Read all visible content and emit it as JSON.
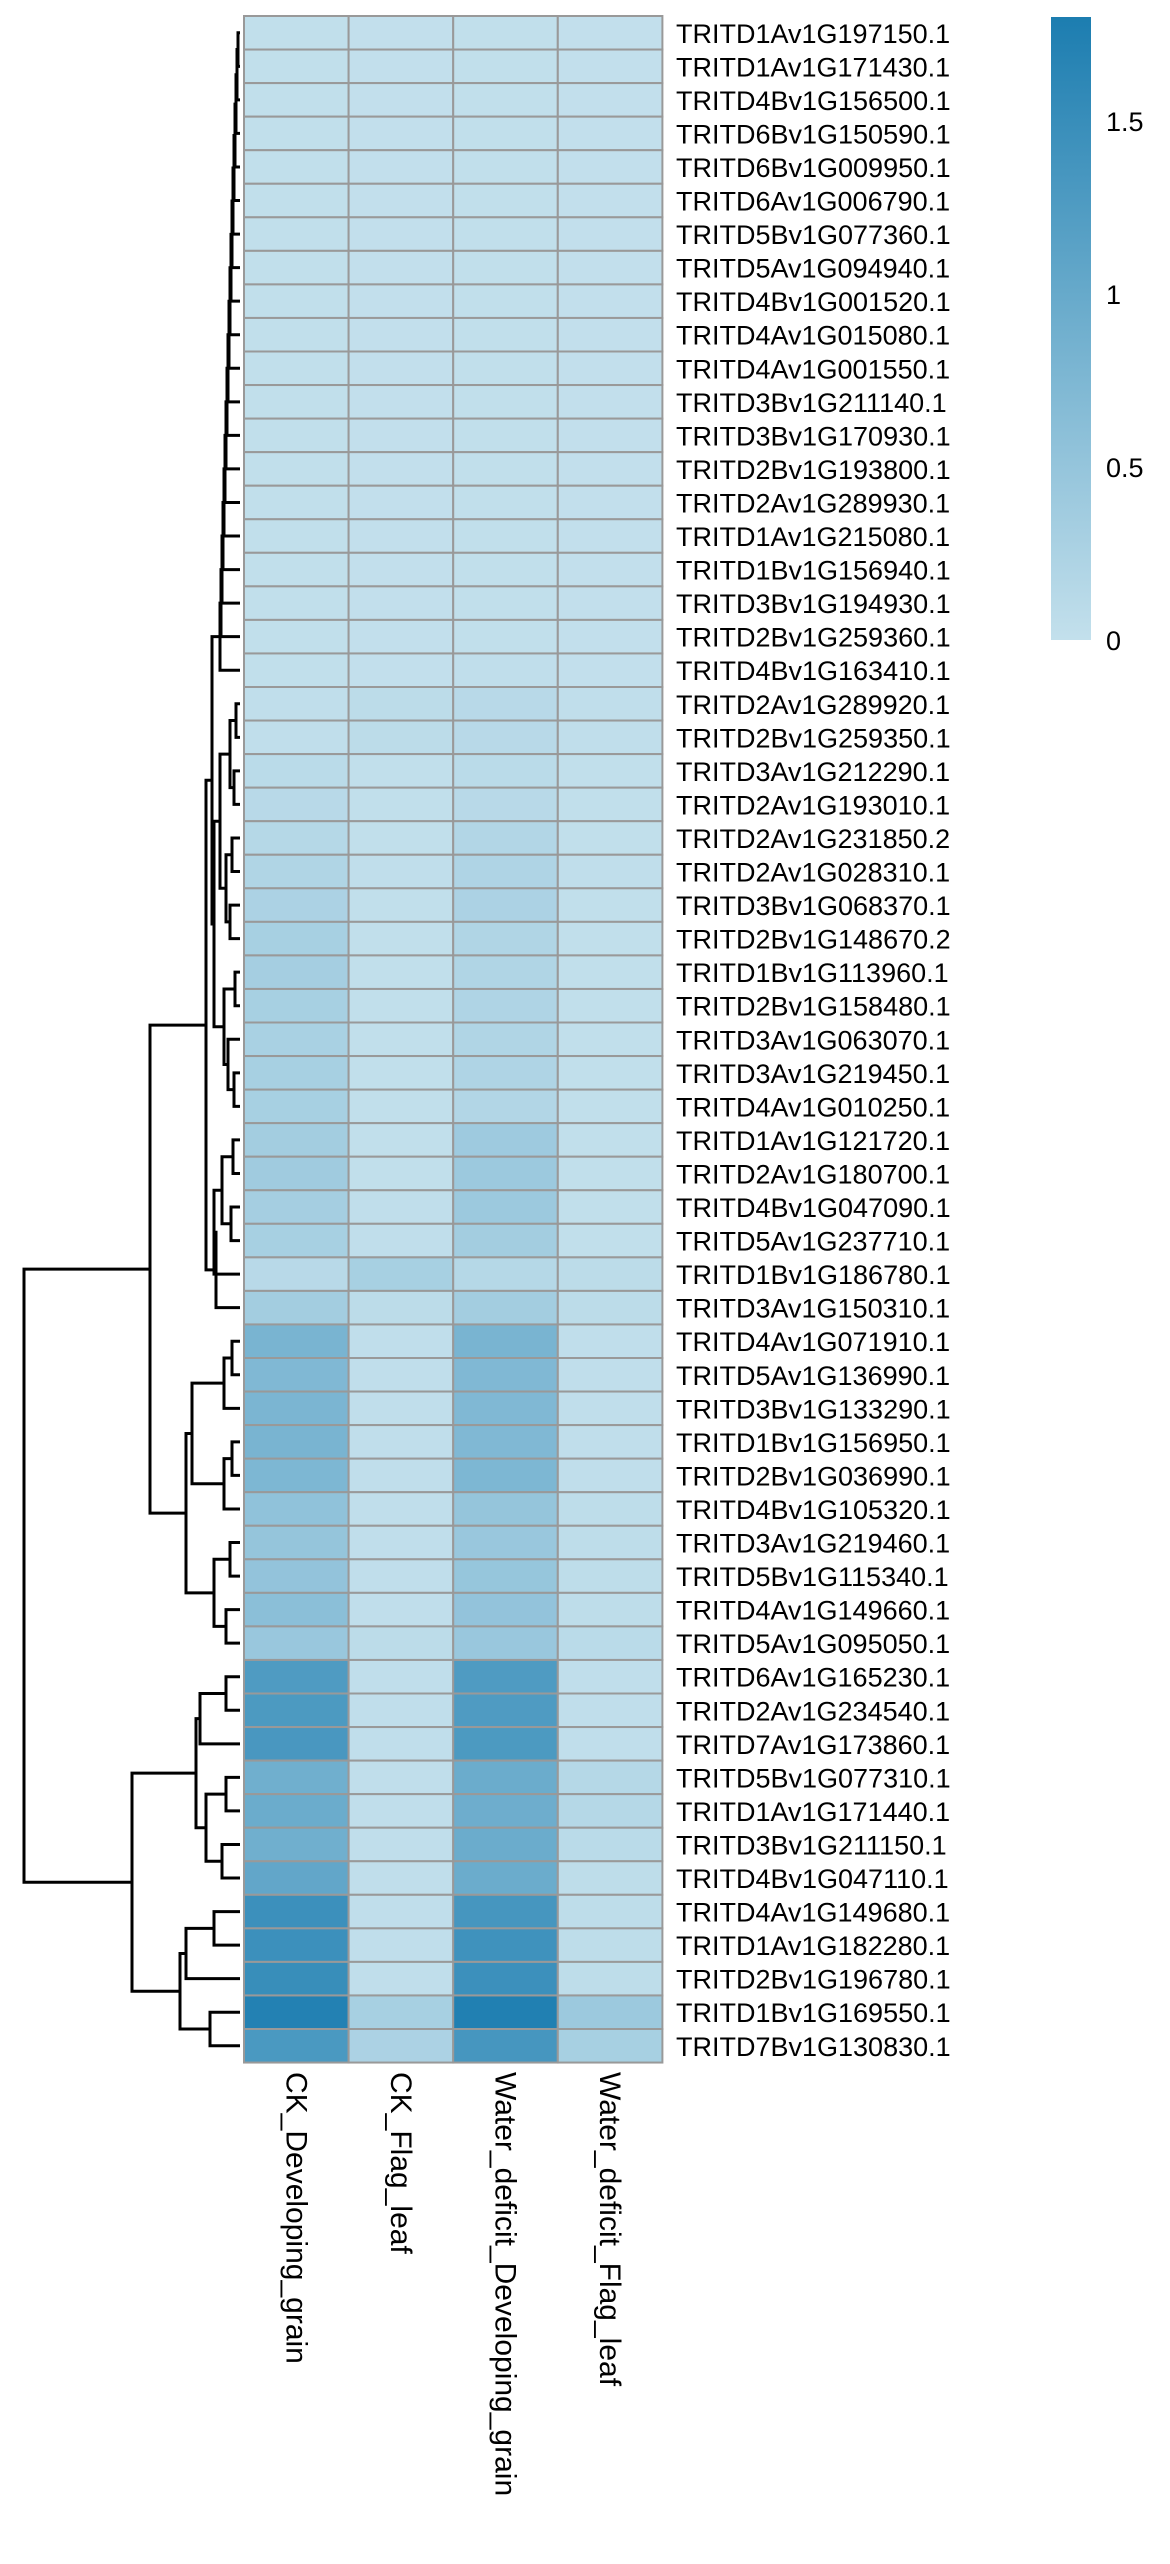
{
  "chart_data": {
    "type": "heatmap",
    "columns": [
      "CK_Developing_grain",
      "CK_Flag_leaf",
      "Water_deficit_Developing_grain",
      "Water_deficit_Flag_leaf"
    ],
    "rows": [
      "TRITD1Av1G197150.1",
      "TRITD1Av1G171430.1",
      "TRITD4Bv1G156500.1",
      "TRITD6Bv1G150590.1",
      "TRITD6Bv1G009950.1",
      "TRITD6Av1G006790.1",
      "TRITD5Bv1G077360.1",
      "TRITD5Av1G094940.1",
      "TRITD4Bv1G001520.1",
      "TRITD4Av1G015080.1",
      "TRITD4Av1G001550.1",
      "TRITD3Bv1G211140.1",
      "TRITD3Bv1G170930.1",
      "TRITD2Bv1G193800.1",
      "TRITD2Av1G289930.1",
      "TRITD1Av1G215080.1",
      "TRITD1Bv1G156940.1",
      "TRITD3Bv1G194930.1",
      "TRITD2Bv1G259360.1",
      "TRITD4Bv1G163410.1",
      "TRITD2Av1G289920.1",
      "TRITD2Bv1G259350.1",
      "TRITD3Av1G212290.1",
      "TRITD2Av1G193010.1",
      "TRITD2Av1G231850.2",
      "TRITD2Av1G028310.1",
      "TRITD3Bv1G068370.1",
      "TRITD2Bv1G148670.2",
      "TRITD1Bv1G113960.1",
      "TRITD2Bv1G158480.1",
      "TRITD3Av1G063070.1",
      "TRITD3Av1G219450.1",
      "TRITD4Av1G010250.1",
      "TRITD1Av1G121720.1",
      "TRITD2Av1G180700.1",
      "TRITD4Bv1G047090.1",
      "TRITD5Av1G237710.1",
      "TRITD1Bv1G186780.1",
      "TRITD3Av1G150310.1",
      "TRITD4Av1G071910.1",
      "TRITD5Av1G136990.1",
      "TRITD3Bv1G133290.1",
      "TRITD1Bv1G156950.1",
      "TRITD2Bv1G036990.1",
      "TRITD4Bv1G105320.1",
      "TRITD3Av1G219460.1",
      "TRITD5Bv1G115340.1",
      "TRITD4Av1G149660.1",
      "TRITD5Av1G095050.1",
      "TRITD6Av1G165230.1",
      "TRITD2Av1G234540.1",
      "TRITD7Av1G173860.1",
      "TRITD5Bv1G077310.1",
      "TRITD1Av1G171440.1",
      "TRITD3Bv1G211150.1",
      "TRITD4Bv1G047110.1",
      "TRITD4Av1G149680.1",
      "TRITD1Av1G182280.1",
      "TRITD2Bv1G196780.1",
      "TRITD1Bv1G169550.1",
      "TRITD7Bv1G130830.1"
    ],
    "values": [
      [
        0.02,
        0.01,
        0.02,
        0.01
      ],
      [
        0.02,
        0.01,
        0.02,
        0.01
      ],
      [
        0.02,
        0.01,
        0.02,
        0.01
      ],
      [
        0.02,
        0.01,
        0.02,
        0.01
      ],
      [
        0.02,
        0.01,
        0.02,
        0.01
      ],
      [
        0.02,
        0.01,
        0.02,
        0.01
      ],
      [
        0.02,
        0.01,
        0.02,
        0.01
      ],
      [
        0.02,
        0.01,
        0.02,
        0.01
      ],
      [
        0.02,
        0.01,
        0.02,
        0.01
      ],
      [
        0.02,
        0.01,
        0.02,
        0.01
      ],
      [
        0.02,
        0.01,
        0.02,
        0.01
      ],
      [
        0.02,
        0.01,
        0.02,
        0.01
      ],
      [
        0.02,
        0.01,
        0.02,
        0.01
      ],
      [
        0.02,
        0.01,
        0.02,
        0.01
      ],
      [
        0.02,
        0.01,
        0.02,
        0.01
      ],
      [
        0.02,
        0.01,
        0.02,
        0.01
      ],
      [
        0.02,
        0.01,
        0.02,
        0.01
      ],
      [
        0.02,
        0.01,
        0.02,
        0.01
      ],
      [
        0.02,
        0.01,
        0.02,
        0.01
      ],
      [
        0.02,
        0.01,
        0.03,
        0.01
      ],
      [
        0.03,
        0.08,
        0.12,
        0.03
      ],
      [
        0.03,
        0.08,
        0.12,
        0.03
      ],
      [
        0.1,
        0.02,
        0.1,
        0.02
      ],
      [
        0.12,
        0.02,
        0.12,
        0.02
      ],
      [
        0.15,
        0.02,
        0.18,
        0.02
      ],
      [
        0.2,
        0.03,
        0.22,
        0.03
      ],
      [
        0.25,
        0.02,
        0.25,
        0.02
      ],
      [
        0.3,
        0.02,
        0.2,
        0.02
      ],
      [
        0.32,
        0.02,
        0.2,
        0.02
      ],
      [
        0.3,
        0.02,
        0.22,
        0.02
      ],
      [
        0.28,
        0.02,
        0.2,
        0.02
      ],
      [
        0.3,
        0.02,
        0.22,
        0.02
      ],
      [
        0.3,
        0.02,
        0.18,
        0.02
      ],
      [
        0.35,
        0.02,
        0.4,
        0.02
      ],
      [
        0.38,
        0.02,
        0.42,
        0.02
      ],
      [
        0.32,
        0.03,
        0.42,
        0.02
      ],
      [
        0.3,
        0.03,
        0.35,
        0.02
      ],
      [
        0.12,
        0.3,
        0.15,
        0.08
      ],
      [
        0.35,
        0.08,
        0.35,
        0.08
      ],
      [
        0.8,
        0.03,
        0.8,
        0.03
      ],
      [
        0.72,
        0.03,
        0.72,
        0.03
      ],
      [
        0.78,
        0.03,
        0.72,
        0.03
      ],
      [
        0.8,
        0.03,
        0.72,
        0.03
      ],
      [
        0.75,
        0.03,
        0.75,
        0.03
      ],
      [
        0.55,
        0.03,
        0.5,
        0.05
      ],
      [
        0.5,
        0.03,
        0.45,
        0.05
      ],
      [
        0.52,
        0.03,
        0.48,
        0.05
      ],
      [
        0.6,
        0.03,
        0.52,
        0.05
      ],
      [
        0.45,
        0.08,
        0.45,
        0.1
      ],
      [
        1.25,
        0.03,
        1.25,
        0.03
      ],
      [
        1.28,
        0.03,
        1.25,
        0.03
      ],
      [
        1.32,
        0.03,
        1.28,
        0.03
      ],
      [
        0.9,
        0.03,
        0.95,
        0.15
      ],
      [
        0.95,
        0.03,
        0.92,
        0.15
      ],
      [
        0.9,
        0.03,
        0.95,
        0.1
      ],
      [
        1.05,
        0.03,
        0.95,
        0.05
      ],
      [
        1.45,
        0.03,
        1.35,
        0.05
      ],
      [
        1.45,
        0.03,
        1.42,
        0.05
      ],
      [
        1.5,
        0.03,
        1.45,
        0.05
      ],
      [
        1.72,
        0.3,
        1.75,
        0.42
      ],
      [
        1.3,
        0.25,
        1.35,
        0.3
      ]
    ],
    "scale_min": 0,
    "scale_max": 1.8,
    "legend_ticks": [
      0,
      0.5,
      1,
      1.5
    ],
    "legend_tick_labels": [
      "0",
      "0.5",
      "1",
      "1.5"
    ],
    "legend_placement": "top-right",
    "colors": {
      "low": "#c3e0ec",
      "high": "#1c7db0",
      "cell_border": "#999999",
      "dendrogram": "#000000"
    },
    "row_dendrogram": true,
    "grid": false
  }
}
